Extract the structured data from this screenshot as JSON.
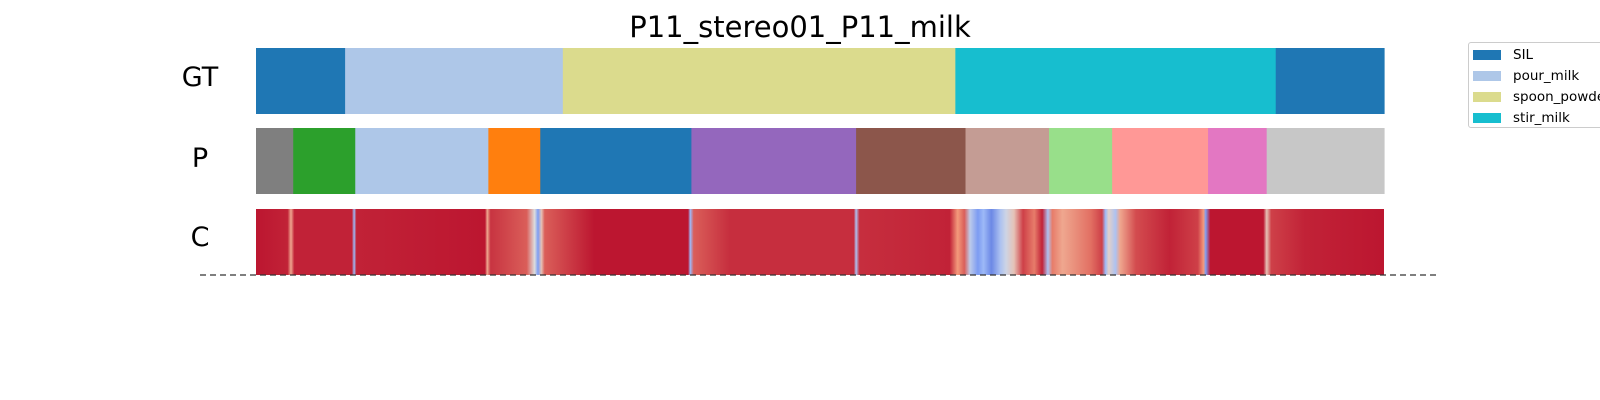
{
  "chart_data": {
    "type": "timeline",
    "title": "P11_stereo01_P11_milk",
    "xlim": [
      0,
      1
    ],
    "rows": [
      {
        "label": "GT",
        "segments": [
          {
            "start": 0.0,
            "end": 0.079,
            "color": "#1f77b4",
            "action": "SIL"
          },
          {
            "start": 0.079,
            "end": 0.272,
            "color": "#aec7e8",
            "action": "pour_milk"
          },
          {
            "start": 0.272,
            "end": 0.62,
            "color": "#dbdb8d",
            "action": "spoon_powder"
          },
          {
            "start": 0.62,
            "end": 0.904,
            "color": "#17becf",
            "action": "stir_milk"
          },
          {
            "start": 0.904,
            "end": 1.0,
            "color": "#1f77b4",
            "action": "SIL"
          }
        ]
      },
      {
        "label": "P",
        "segments": [
          {
            "start": 0.0,
            "end": 0.033,
            "color": "#7f7f7f"
          },
          {
            "start": 0.033,
            "end": 0.088,
            "color": "#2ca02c"
          },
          {
            "start": 0.088,
            "end": 0.206,
            "color": "#aec7e8"
          },
          {
            "start": 0.206,
            "end": 0.252,
            "color": "#ff7f0e"
          },
          {
            "start": 0.252,
            "end": 0.386,
            "color": "#1f77b4"
          },
          {
            "start": 0.386,
            "end": 0.532,
            "color": "#9467bd"
          },
          {
            "start": 0.532,
            "end": 0.629,
            "color": "#8c564b"
          },
          {
            "start": 0.629,
            "end": 0.703,
            "color": "#c49c94"
          },
          {
            "start": 0.703,
            "end": 0.759,
            "color": "#98df8a"
          },
          {
            "start": 0.759,
            "end": 0.844,
            "color": "#ff9896"
          },
          {
            "start": 0.844,
            "end": 0.896,
            "color": "#e377c2"
          },
          {
            "start": 0.896,
            "end": 1.0,
            "color": "#c7c7c7"
          }
        ]
      },
      {
        "label": "C",
        "colormap": "coolwarm",
        "confidence": [
          {
            "x": 0.0,
            "v": 0.97
          },
          {
            "x": 0.028,
            "v": 0.95
          },
          {
            "x": 0.031,
            "v": 0.7
          },
          {
            "x": 0.034,
            "v": 0.95
          },
          {
            "x": 0.085,
            "v": 0.95
          },
          {
            "x": 0.087,
            "v": 0.3
          },
          {
            "x": 0.089,
            "v": 0.95
          },
          {
            "x": 0.203,
            "v": 0.97
          },
          {
            "x": 0.205,
            "v": 0.7
          },
          {
            "x": 0.208,
            "v": 0.92
          },
          {
            "x": 0.24,
            "v": 0.85
          },
          {
            "x": 0.247,
            "v": 0.5
          },
          {
            "x": 0.25,
            "v": 0.2
          },
          {
            "x": 0.253,
            "v": 0.6
          },
          {
            "x": 0.256,
            "v": 0.85
          },
          {
            "x": 0.3,
            "v": 0.97
          },
          {
            "x": 0.383,
            "v": 0.97
          },
          {
            "x": 0.385,
            "v": 0.3
          },
          {
            "x": 0.388,
            "v": 0.85
          },
          {
            "x": 0.42,
            "v": 0.93
          },
          {
            "x": 0.53,
            "v": 0.93
          },
          {
            "x": 0.532,
            "v": 0.35
          },
          {
            "x": 0.535,
            "v": 0.93
          },
          {
            "x": 0.615,
            "v": 0.95
          },
          {
            "x": 0.622,
            "v": 0.75
          },
          {
            "x": 0.628,
            "v": 0.85
          },
          {
            "x": 0.633,
            "v": 0.4
          },
          {
            "x": 0.64,
            "v": 0.2
          },
          {
            "x": 0.645,
            "v": 0.3
          },
          {
            "x": 0.652,
            "v": 0.15
          },
          {
            "x": 0.66,
            "v": 0.35
          },
          {
            "x": 0.665,
            "v": 0.45
          },
          {
            "x": 0.672,
            "v": 0.6
          },
          {
            "x": 0.68,
            "v": 0.9
          },
          {
            "x": 0.69,
            "v": 0.8
          },
          {
            "x": 0.697,
            "v": 0.95
          },
          {
            "x": 0.702,
            "v": 0.35
          },
          {
            "x": 0.706,
            "v": 0.8
          },
          {
            "x": 0.715,
            "v": 0.7
          },
          {
            "x": 0.74,
            "v": 0.82
          },
          {
            "x": 0.75,
            "v": 0.9
          },
          {
            "x": 0.753,
            "v": 0.3
          },
          {
            "x": 0.756,
            "v": 0.55
          },
          {
            "x": 0.762,
            "v": 0.35
          },
          {
            "x": 0.766,
            "v": 0.7
          },
          {
            "x": 0.78,
            "v": 0.88
          },
          {
            "x": 0.81,
            "v": 0.95
          },
          {
            "x": 0.835,
            "v": 0.9
          },
          {
            "x": 0.84,
            "v": 0.75
          },
          {
            "x": 0.842,
            "v": 0.2
          },
          {
            "x": 0.846,
            "v": 0.97
          },
          {
            "x": 0.893,
            "v": 0.97
          },
          {
            "x": 0.896,
            "v": 0.6
          },
          {
            "x": 0.9,
            "v": 0.9
          },
          {
            "x": 0.93,
            "v": 0.95
          },
          {
            "x": 1.0,
            "v": 0.97
          }
        ]
      }
    ],
    "legend": {
      "placement": "upper-right-outside",
      "entries": [
        {
          "label": "SIL",
          "color": "#1f77b4"
        },
        {
          "label": "pour_milk",
          "color": "#aec7e8"
        },
        {
          "label": "spoon_powder",
          "color": "#dbdb8d"
        },
        {
          "label": "stir_milk",
          "color": "#17becf"
        }
      ]
    },
    "baseline": {
      "style": "dashed",
      "color": "#333333"
    }
  }
}
